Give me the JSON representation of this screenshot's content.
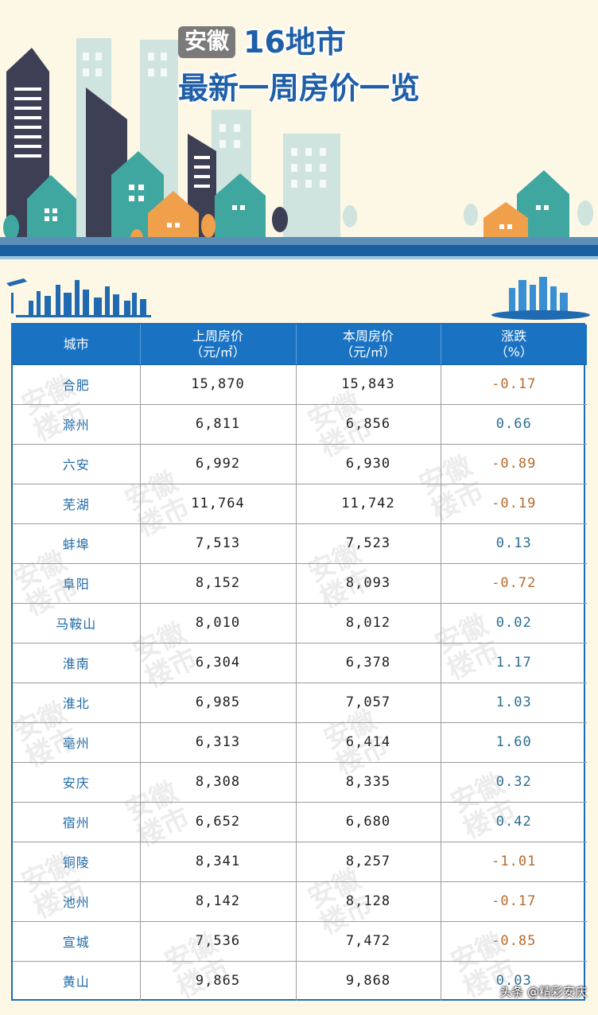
{
  "header": {
    "tag": "安徽",
    "title_line1": "16地市",
    "title_line2": "最新一周房价一览"
  },
  "table": {
    "columns": [
      {
        "line1": "城市",
        "line2": ""
      },
      {
        "line1": "上周房价",
        "line2": "（元/㎡）"
      },
      {
        "line1": "本周房价",
        "line2": "（元/㎡）"
      },
      {
        "line1": "涨跌",
        "line2": "（%）"
      }
    ],
    "rows": [
      {
        "city": "合肥",
        "last_week": "15,870",
        "this_week": "15,843",
        "change": "-0.17"
      },
      {
        "city": "滁州",
        "last_week": "6,811",
        "this_week": "6,856",
        "change": "0.66"
      },
      {
        "city": "六安",
        "last_week": "6,992",
        "this_week": "6,930",
        "change": "-0.89"
      },
      {
        "city": "芜湖",
        "last_week": "11,764",
        "this_week": "11,742",
        "change": "-0.19"
      },
      {
        "city": "蚌埠",
        "last_week": "7,513",
        "this_week": "7,523",
        "change": "0.13"
      },
      {
        "city": "阜阳",
        "last_week": "8,152",
        "this_week": "8,093",
        "change": "-0.72"
      },
      {
        "city": "马鞍山",
        "last_week": "8,010",
        "this_week": "8,012",
        "change": "0.02"
      },
      {
        "city": "淮南",
        "last_week": "6,304",
        "this_week": "6,378",
        "change": "1.17"
      },
      {
        "city": "淮北",
        "last_week": "6,985",
        "this_week": "7,057",
        "change": "1.03"
      },
      {
        "city": "亳州",
        "last_week": "6,313",
        "this_week": "6,414",
        "change": "1.60"
      },
      {
        "city": "安庆",
        "last_week": "8,308",
        "this_week": "8,335",
        "change": "0.32"
      },
      {
        "city": "宿州",
        "last_week": "6,652",
        "this_week": "6,680",
        "change": "0.42"
      },
      {
        "city": "铜陵",
        "last_week": "8,341",
        "this_week": "8,257",
        "change": "-1.01"
      },
      {
        "city": "池州",
        "last_week": "8,142",
        "this_week": "8,128",
        "change": "-0.17"
      },
      {
        "city": "宣城",
        "last_week": "7,536",
        "this_week": "7,472",
        "change": "-0.85"
      },
      {
        "city": "黄山",
        "last_week": "9,865",
        "this_week": "9,868",
        "change": "0.03"
      }
    ]
  },
  "watermark": {
    "line1": "安徽",
    "line2": "楼市"
  },
  "credit": "头条 @精彩安庆",
  "colors": {
    "header_bg": "#1a72c2",
    "title_blue": "#1f5fa8",
    "city_text": "#1e6aa8",
    "rise": "#2a6e92",
    "fall": "#b86a2c",
    "page_bg": "#fdf7e6"
  }
}
